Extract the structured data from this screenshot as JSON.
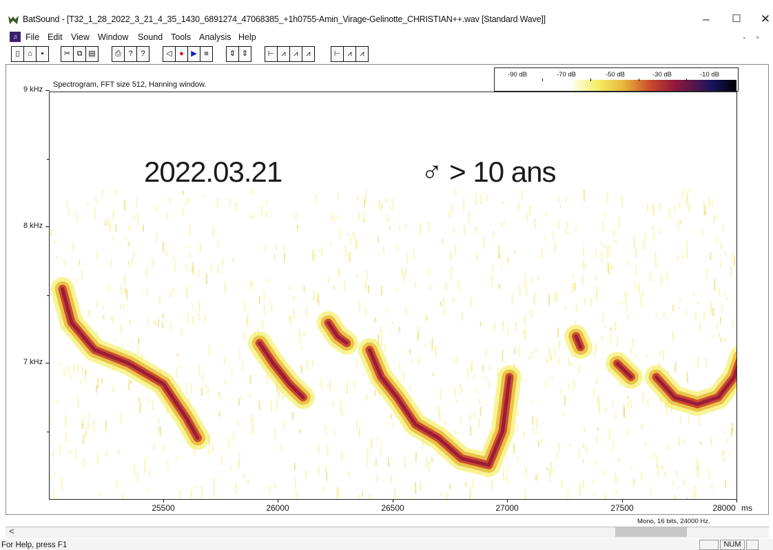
{
  "window": {
    "title": "BatSound - [T32_1_28_2022_3_21_4_35_1430_6891274_47068385_+1h0755-Amin_Virage-Gelinotte_CHRISTIAN++.wav [Standard Wave]]",
    "minimize": "–",
    "maximize": "☐",
    "close": "✕",
    "app_icon": "batsound-logo-icon"
  },
  "menu": {
    "items": [
      "File",
      "Edit",
      "View",
      "Window",
      "Sound",
      "Tools",
      "Analysis",
      "Help"
    ],
    "mdi_controls": "- ▫"
  },
  "toolbar": {
    "icons": [
      "new-file-icon",
      "open-file-icon",
      "save-icon",
      "cut-icon",
      "copy-icon",
      "paste-icon",
      "print-icon",
      "help-icon",
      "context-help-icon",
      "rewind-icon",
      "record-icon",
      "play-icon",
      "stop-icon",
      "zoom-in-vertical-icon",
      "zoom-out-vertical-icon",
      "signal-view-icon",
      "spectrum-view-icon",
      "spectrogram-view-icon",
      "power-spectrum-icon",
      "signal-view-2-icon",
      "spectrum-view-2-icon",
      "spectrum-view-3-icon"
    ],
    "glyphs": [
      "▯",
      "⌂",
      "▪",
      "✂",
      "⧉",
      "▤",
      "⎙",
      "?",
      "?",
      "◁",
      "●",
      "▶",
      "■",
      "⇕",
      "⇕",
      "⊢",
      "⩘",
      "⩘",
      "⩘",
      "⊢",
      "⩘",
      "⩘"
    ]
  },
  "plot": {
    "caption": "Spectrogram, FFT size 512, Hanning window.",
    "colorbar": {
      "labels": [
        "-90 dB",
        "-70 dB",
        "-50 dB",
        "-30 dB",
        "-10 dB"
      ],
      "colors": [
        "#fffde0",
        "#f3f06a",
        "#e9b93b",
        "#c7452d",
        "#93173a",
        "#481650",
        "#15125a",
        "#000000"
      ]
    },
    "annotations": {
      "date": "2022.03.21",
      "age": "♂ > 10 ans"
    },
    "info": "Mono, 16 bits, 24000 Hz."
  },
  "chart_data": {
    "type": "heatmap",
    "title": "Spectrogram, FFT size 512, Hanning window.",
    "xlabel": "",
    "x_unit": "ms",
    "ylabel": "",
    "x_ticks": [
      "25500",
      "26000",
      "26500",
      "27000",
      "27500",
      "28000"
    ],
    "y_ticks": [
      "9 kHz",
      "8 kHz",
      "7 kHz"
    ],
    "xlim": [
      25000,
      28000
    ],
    "ylim_khz": [
      6.0,
      9.0
    ],
    "calls": [
      {
        "name": "call-1",
        "points": [
          [
            25060,
            7.55
          ],
          [
            25100,
            7.3
          ],
          [
            25200,
            7.1
          ],
          [
            25350,
            7.0
          ],
          [
            25500,
            6.85
          ],
          [
            25600,
            6.6
          ],
          [
            25650,
            6.45
          ]
        ]
      },
      {
        "name": "call-2",
        "points": [
          [
            25920,
            7.15
          ],
          [
            25980,
            7.0
          ],
          [
            26050,
            6.85
          ],
          [
            26110,
            6.75
          ]
        ]
      },
      {
        "name": "call-3",
        "points": [
          [
            26220,
            7.3
          ],
          [
            26260,
            7.2
          ],
          [
            26300,
            7.15
          ]
        ]
      },
      {
        "name": "call-4",
        "points": [
          [
            26400,
            7.1
          ],
          [
            26450,
            6.9
          ],
          [
            26520,
            6.75
          ],
          [
            26600,
            6.55
          ],
          [
            26700,
            6.45
          ],
          [
            26800,
            6.3
          ],
          [
            26920,
            6.25
          ],
          [
            26980,
            6.5
          ],
          [
            27010,
            6.9
          ]
        ]
      },
      {
        "name": "call-5",
        "points": [
          [
            27300,
            7.2
          ],
          [
            27320,
            7.12
          ]
        ]
      },
      {
        "name": "call-6",
        "points": [
          [
            27480,
            7.0
          ],
          [
            27540,
            6.9
          ]
        ]
      },
      {
        "name": "call-7",
        "points": [
          [
            27650,
            6.9
          ],
          [
            27730,
            6.75
          ],
          [
            27830,
            6.7
          ],
          [
            27920,
            6.75
          ],
          [
            27990,
            6.9
          ],
          [
            28020,
            7.05
          ]
        ]
      }
    ]
  },
  "status": {
    "help": "For Help, press F1",
    "num": "NUM",
    "scroll_left": "<"
  }
}
